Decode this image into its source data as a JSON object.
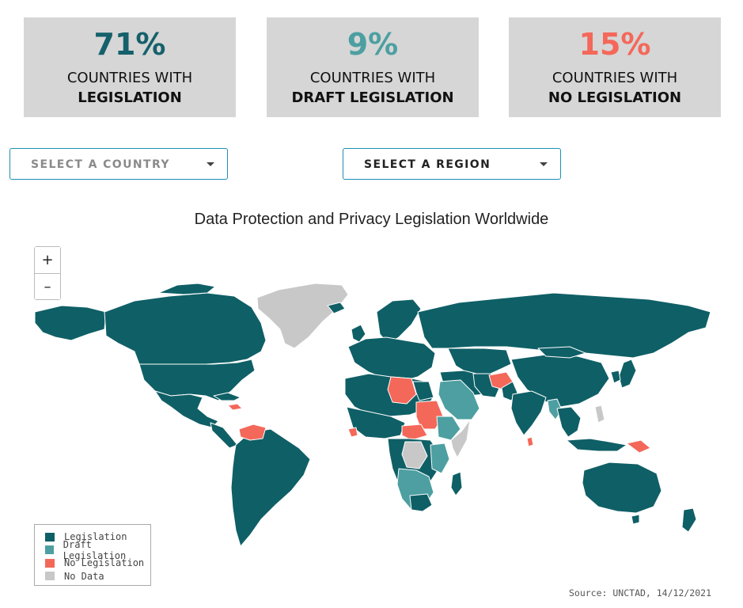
{
  "stats": [
    {
      "value": "71%",
      "line1": "COUNTRIES WITH",
      "line2": "LEGISLATION",
      "color": "#15606b"
    },
    {
      "value": "9%",
      "line1": "COUNTRIES WITH",
      "line2": "DRAFT LEGISLATION",
      "color": "#4d9fa1"
    },
    {
      "value": "15%",
      "line1": "COUNTRIES WITH",
      "line2": "NO LEGISLATION",
      "color": "#f4685a"
    }
  ],
  "filters": {
    "country": {
      "label": "SELECT A COUNTRY",
      "color": "#8a8a8a"
    },
    "region": {
      "label": "SELECT A REGION",
      "color": "#222222"
    }
  },
  "map": {
    "title": "Data Protection and Privacy Legislation Worldwide",
    "zoom_in": "+",
    "zoom_out": "–",
    "colors": {
      "legislation": "#0f5f66",
      "draft": "#4d9fa1",
      "none": "#f4685a",
      "no_data": "#c8c8c8",
      "border": "#ffffff"
    }
  },
  "legend": {
    "items": [
      {
        "label": "Legislation",
        "color": "#0f5f66"
      },
      {
        "label": "Draft Legislation",
        "color": "#4d9fa1"
      },
      {
        "label": "No Legislation",
        "color": "#f4685a"
      },
      {
        "label": "No Data",
        "color": "#c8c8c8"
      }
    ]
  },
  "source": "Source: UNCTAD, 14/12/2021"
}
